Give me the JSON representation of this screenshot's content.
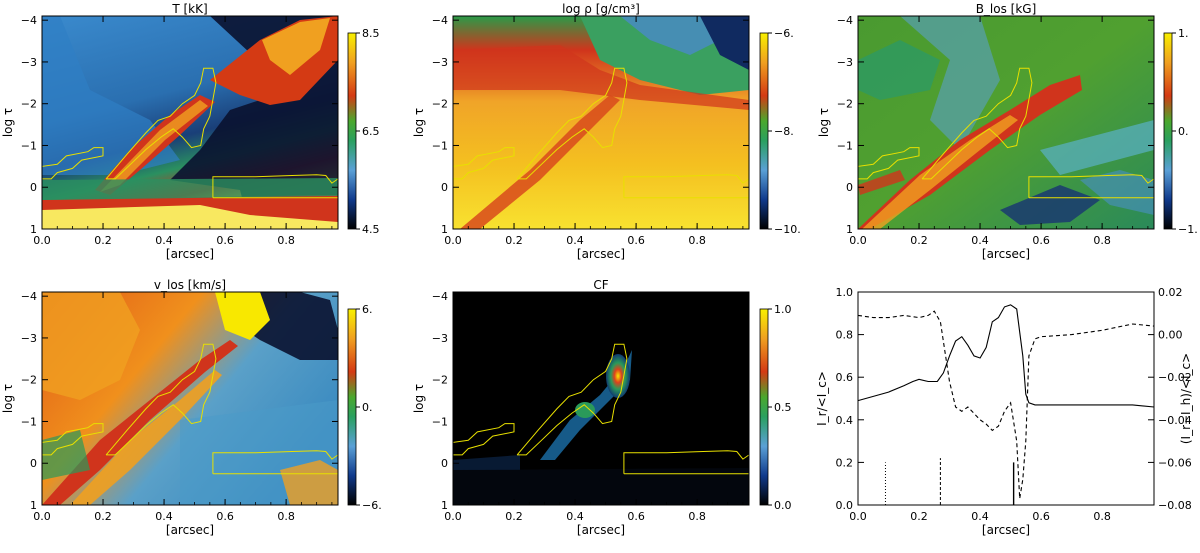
{
  "figure": {
    "colors": {
      "axis": "#000000",
      "contour": "#e8e000",
      "background": "#ffffff"
    }
  },
  "chart_data": [
    {
      "type": "heatmap",
      "title": "T [kK]",
      "xlabel": "[arcsec]",
      "ylabel": "log τ",
      "xlim": [
        0.0,
        0.97
      ],
      "ylim": [
        1,
        -4.1
      ],
      "xticks": [
        "0.0",
        "0.2",
        "0.4",
        "0.6",
        "0.8"
      ],
      "yticks": [
        "−4",
        "−3",
        "−2",
        "−1",
        "0",
        "1"
      ],
      "colorbar": {
        "ticks": [
          "8.5",
          "6.5",
          "4.5"
        ],
        "range": [
          4.5,
          8.5
        ]
      },
      "colormap": "black-blue-green-red-yellow"
    },
    {
      "type": "heatmap",
      "title": "log ρ  [g/cm³]",
      "xlabel": "[arcsec]",
      "ylabel": "log τ",
      "xlim": [
        0.0,
        0.97
      ],
      "ylim": [
        1,
        -4.1
      ],
      "xticks": [
        "0.0",
        "0.2",
        "0.4",
        "0.6",
        "0.8"
      ],
      "yticks": [
        "−4",
        "−3",
        "−2",
        "−1",
        "0",
        "1"
      ],
      "colorbar": {
        "ticks": [
          "−6.",
          "−8.",
          "−10."
        ],
        "range": [
          -10,
          -6
        ]
      },
      "colormap": "black-blue-green-red-yellow"
    },
    {
      "type": "heatmap",
      "title": "B_los [kG]",
      "xlabel": "[arcsec]",
      "ylabel": "log τ",
      "xlim": [
        0.0,
        0.97
      ],
      "ylim": [
        1,
        -4.1
      ],
      "xticks": [
        "0.0",
        "0.2",
        "0.4",
        "0.6",
        "0.8"
      ],
      "yticks": [
        "−4",
        "−3",
        "−2",
        "−1",
        "0",
        "1"
      ],
      "colorbar": {
        "ticks": [
          "1.",
          "0.",
          "−1."
        ],
        "range": [
          -1,
          1
        ]
      },
      "colormap": "black-blue-green-red-yellow"
    },
    {
      "type": "heatmap",
      "title": "v_los [km/s]",
      "xlabel": "[arcsec]",
      "ylabel": "log τ",
      "xlim": [
        0.0,
        0.97
      ],
      "ylim": [
        1,
        -4.1
      ],
      "xticks": [
        "0.0",
        "0.2",
        "0.4",
        "0.6",
        "0.8"
      ],
      "yticks": [
        "−4",
        "−3",
        "−2",
        "−1",
        "0",
        "1"
      ],
      "colorbar": {
        "ticks": [
          "6.",
          "0.",
          "−6."
        ],
        "range": [
          -6,
          6
        ]
      },
      "colormap": "black-blue-green-red-yellow"
    },
    {
      "type": "heatmap",
      "title": "CF",
      "xlabel": "[arcsec]",
      "ylabel": "log τ",
      "xlim": [
        0.0,
        0.97
      ],
      "ylim": [
        1,
        -4.1
      ],
      "xticks": [
        "0.0",
        "0.2",
        "0.4",
        "0.6",
        "0.8"
      ],
      "yticks": [
        "−4",
        "−3",
        "−2",
        "−1",
        "0",
        "1"
      ],
      "colorbar": {
        "ticks": [
          "1.0",
          "0.5",
          "0.0"
        ],
        "range": [
          0,
          1
        ]
      },
      "colormap": "black-blue-green-red-yellow"
    },
    {
      "type": "line",
      "title": "",
      "xlabel": "[arcsec]",
      "ylabel": "I_r/<I_c>",
      "ylabel_right": "(I_r−I_h)/<I_c>",
      "xlim": [
        0.0,
        0.97
      ],
      "ylim": [
        0.0,
        1.0
      ],
      "ylim_right": [
        -0.08,
        0.02
      ],
      "xticks": [
        "0.0",
        "0.2",
        "0.4",
        "0.6",
        "0.8"
      ],
      "yticks": [
        "0.0",
        "0.2",
        "0.4",
        "0.6",
        "0.8",
        "1.0"
      ],
      "yticks_right": [
        "0.02",
        "0.00",
        "−0.02",
        "−0.04",
        "−0.06",
        "−0.08"
      ],
      "series": [
        {
          "style": "solid",
          "axis": "left",
          "x": [
            0.0,
            0.05,
            0.1,
            0.15,
            0.18,
            0.2,
            0.23,
            0.26,
            0.28,
            0.3,
            0.32,
            0.34,
            0.36,
            0.38,
            0.4,
            0.42,
            0.44,
            0.46,
            0.48,
            0.5,
            0.52,
            0.54,
            0.55,
            0.56,
            0.58,
            0.6,
            0.7,
            0.8,
            0.9,
            0.97
          ],
          "y": [
            0.49,
            0.51,
            0.53,
            0.56,
            0.58,
            0.59,
            0.58,
            0.58,
            0.62,
            0.7,
            0.77,
            0.79,
            0.75,
            0.7,
            0.69,
            0.74,
            0.86,
            0.88,
            0.93,
            0.94,
            0.92,
            0.7,
            0.52,
            0.48,
            0.47,
            0.47,
            0.47,
            0.47,
            0.47,
            0.46
          ]
        },
        {
          "style": "dashed",
          "axis": "right",
          "x": [
            0.0,
            0.05,
            0.1,
            0.15,
            0.2,
            0.23,
            0.25,
            0.27,
            0.3,
            0.32,
            0.34,
            0.36,
            0.38,
            0.4,
            0.42,
            0.44,
            0.46,
            0.48,
            0.5,
            0.52,
            0.53,
            0.54,
            0.55,
            0.56,
            0.58,
            0.6,
            0.7,
            0.8,
            0.9,
            0.97
          ],
          "y": [
            0.009,
            0.008,
            0.008,
            0.009,
            0.008,
            0.009,
            0.011,
            0.006,
            -0.022,
            -0.034,
            -0.036,
            -0.034,
            -0.037,
            -0.04,
            -0.042,
            -0.045,
            -0.043,
            -0.036,
            -0.032,
            -0.05,
            -0.077,
            -0.068,
            -0.05,
            -0.01,
            -0.002,
            -0.001,
            0.0,
            0.002,
            0.005,
            0.004
          ]
        }
      ],
      "markers": [
        {
          "x": 0.09,
          "height": 0.2,
          "style": "dotted"
        },
        {
          "x": 0.27,
          "height": 0.22,
          "style": "dashed"
        },
        {
          "x": 0.51,
          "height": 0.2,
          "style": "solid"
        }
      ]
    }
  ]
}
